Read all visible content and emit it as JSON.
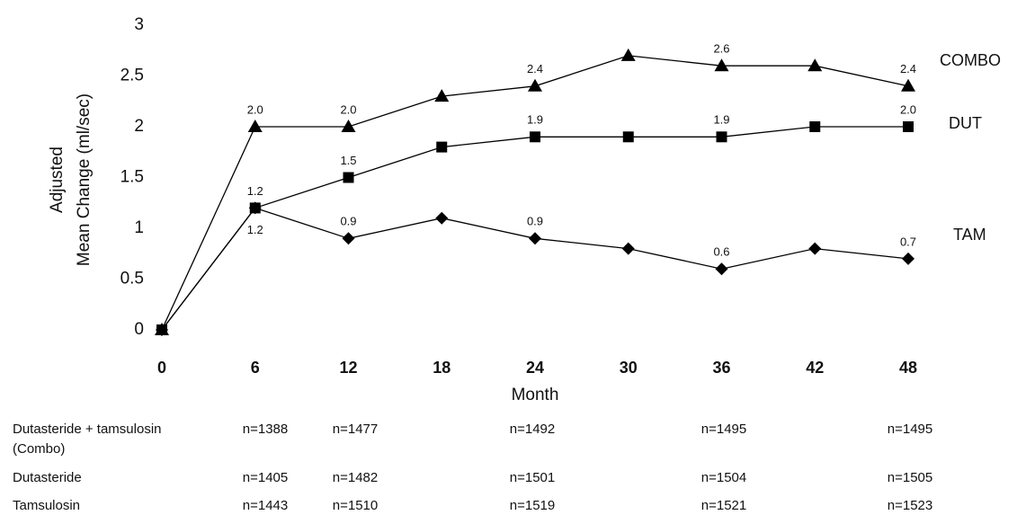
{
  "chart_data": {
    "type": "line",
    "xlabel": "Month",
    "ylabel": [
      "Adjusted",
      "Mean Change (ml/sec)"
    ],
    "x": [
      0,
      6,
      12,
      18,
      24,
      30,
      36,
      42,
      48
    ],
    "xlim": [
      0,
      48
    ],
    "xticks": [
      0,
      6,
      12,
      18,
      24,
      30,
      36,
      42,
      48
    ],
    "ylim": [
      0,
      3
    ],
    "yticks": [
      0,
      0.5,
      1,
      1.5,
      2,
      2.5,
      3
    ],
    "series": [
      {
        "name": "COMBO",
        "color": "#000000",
        "marker": "triangle",
        "values": [
          0,
          2.0,
          2.0,
          2.3,
          2.4,
          2.7,
          2.6,
          2.6,
          2.4
        ],
        "value_labels": [
          null,
          "2.0",
          "2.0",
          null,
          "2.4",
          null,
          "2.6",
          null,
          "2.4"
        ]
      },
      {
        "name": "DUT",
        "color": "#000000",
        "marker": "square",
        "values": [
          0,
          1.2,
          1.5,
          1.8,
          1.9,
          1.9,
          1.9,
          2.0,
          2.0
        ],
        "value_labels": [
          null,
          "1.2",
          "1.5",
          null,
          "1.9",
          null,
          "1.9",
          null,
          "2.0"
        ]
      },
      {
        "name": "TAM",
        "color": "#000000",
        "marker": "diamond",
        "values": [
          0,
          1.2,
          0.9,
          1.1,
          0.9,
          0.8,
          0.6,
          0.8,
          0.7
        ],
        "value_labels": [
          null,
          "1.2",
          "0.9",
          null,
          "0.9",
          null,
          "0.6",
          null,
          "0.7"
        ]
      }
    ]
  },
  "n_table": {
    "rows": [
      {
        "label": [
          "Dutasteride + tamsulosin",
          "(Combo)"
        ],
        "values": [
          "n=1388",
          "n=1477",
          "n=1492",
          "n=1495",
          "n=1495"
        ]
      },
      {
        "label": [
          "Dutasteride"
        ],
        "values": [
          "n=1405",
          "n=1482",
          "n=1501",
          "n=1504",
          "n=1505"
        ]
      },
      {
        "label": [
          "Tamsulosin"
        ],
        "values": [
          "n=1443",
          "n=1510",
          "n=1519",
          "n=1521",
          "n=1523"
        ]
      }
    ]
  }
}
